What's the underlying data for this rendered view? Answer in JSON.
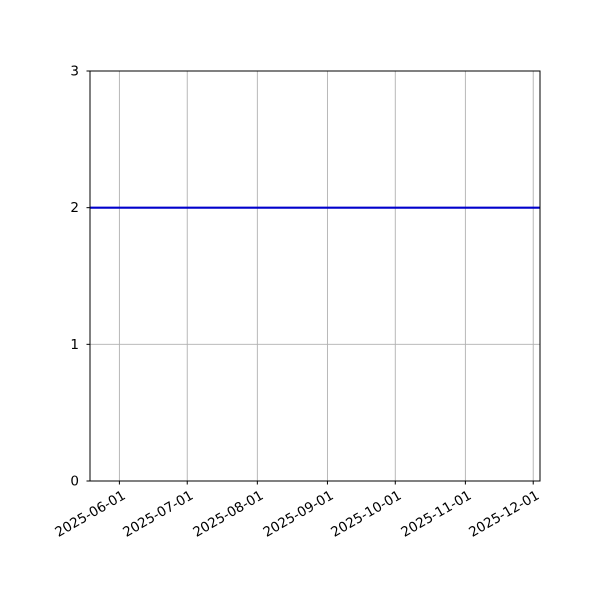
{
  "figure": {
    "background": "#ffffff"
  },
  "chart_data": {
    "type": "line",
    "title": "",
    "xlabel": "",
    "ylabel": "",
    "grid": true,
    "legend": false,
    "ylim": [
      0,
      3
    ],
    "y_ticks": [
      0,
      1,
      2,
      3
    ],
    "xlim_dates": [
      "2025-05-19",
      "2025-12-04"
    ],
    "x_ticks": [
      "2025-06-01",
      "2025-07-01",
      "2025-08-01",
      "2025-09-01",
      "2025-10-01",
      "2025-11-01",
      "2025-12-01"
    ],
    "x_tick_rotation_deg": 30,
    "series": [
      {
        "x": [
          "2025-05-19",
          "2025-12-04"
        ],
        "values": [
          2,
          2
        ],
        "color": "#0000cc"
      }
    ],
    "colors": {
      "grid": "#b0b0b0",
      "axis": "#000000",
      "background": "#ffffff",
      "line": "#0000cc"
    }
  }
}
